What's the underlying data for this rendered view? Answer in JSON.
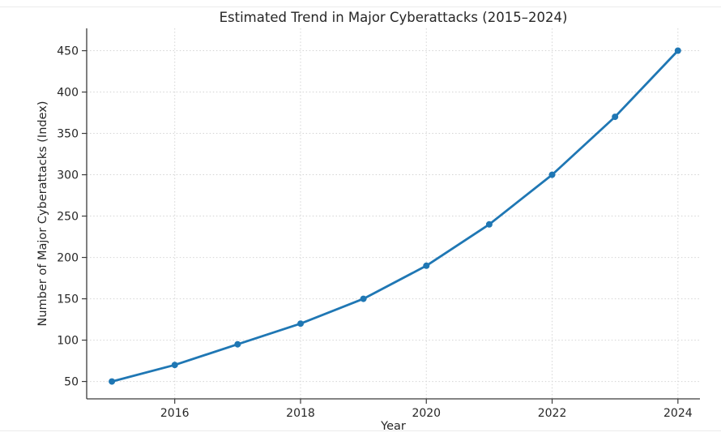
{
  "page": {
    "background": "#ffffff",
    "border_color": "#ebebeb"
  },
  "chart_data": {
    "type": "line",
    "title": "Estimated Trend in Major Cyberattacks (2015–2024)",
    "xlabel": "Year",
    "ylabel": "Number of Major Cyberattacks (Index)",
    "x": [
      2015,
      2016,
      2017,
      2018,
      2019,
      2020,
      2021,
      2022,
      2023,
      2024
    ],
    "series": [
      {
        "name": "major-cyberattacks-index",
        "values": [
          50,
          70,
          95,
          120,
          150,
          190,
          240,
          300,
          370,
          450
        ],
        "color": "#1f77b4",
        "marker": "circle"
      }
    ],
    "xticks": [
      2016,
      2018,
      2020,
      2022,
      2024
    ],
    "xtick_labels": [
      "2016",
      "2018",
      "2020",
      "2022",
      "2024"
    ],
    "yticks": [
      50,
      100,
      150,
      200,
      250,
      300,
      350,
      400,
      450
    ],
    "ytick_labels": [
      "50",
      "100",
      "150",
      "200",
      "250",
      "300",
      "350",
      "400",
      "450"
    ],
    "xlim": [
      2014.6,
      2024.35
    ],
    "ylim": [
      29,
      477
    ],
    "grid": true,
    "grid_style": "dotted",
    "grid_color": "#d4d4d4",
    "spine_color": "#3b3b3b",
    "legend": "none"
  }
}
